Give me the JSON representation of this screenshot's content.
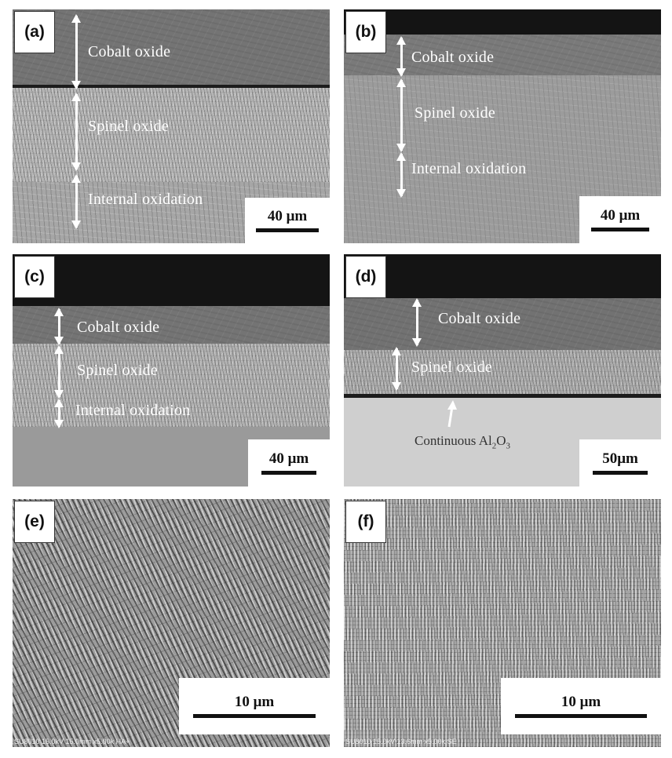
{
  "panels": {
    "a": {
      "tag": "(a)",
      "labels": {
        "cobalt": "Cobalt oxide",
        "spinel": "Spinel oxide",
        "internal": "Internal oxidation"
      },
      "scale": "40 μm"
    },
    "b": {
      "tag": "(b)",
      "labels": {
        "cobalt": "Cobalt oxide",
        "spinel": "Spinel oxide",
        "internal": "Internal oxidation"
      },
      "scale": "40 μm"
    },
    "c": {
      "tag": "(c)",
      "labels": {
        "cobalt": "Cobalt oxide",
        "spinel": "Spinel oxide",
        "internal": "Internal oxidation"
      },
      "scale": "40 μm"
    },
    "d": {
      "tag": "(d)",
      "labels": {
        "cobalt": "Cobalt oxide",
        "spinel": "Spinel oxide",
        "alumina_prefix": "Continuous Al",
        "alumina_sub1": "2",
        "alumina_mid": "O",
        "alumina_sub2": "3"
      },
      "scale": "50μm"
    },
    "e": {
      "tag": "(e)",
      "scale": "10 μm",
      "footer": "SU8010 15.0kV 15.0mm x5.00k HA+"
    },
    "f": {
      "tag": "(f)",
      "scale": "10 μm",
      "footer": "SU8010 15.0kV 13.6mm x5.00k SE"
    }
  },
  "colors": {
    "background": "#ffffff",
    "label_text": "#ffffff",
    "void": "#141414",
    "cobalt_oxide": "#6e6e6e",
    "spinel": "#a8a8a8",
    "substrate": "#9a9a9a",
    "alumina_substrate": "#cfcfcf"
  }
}
